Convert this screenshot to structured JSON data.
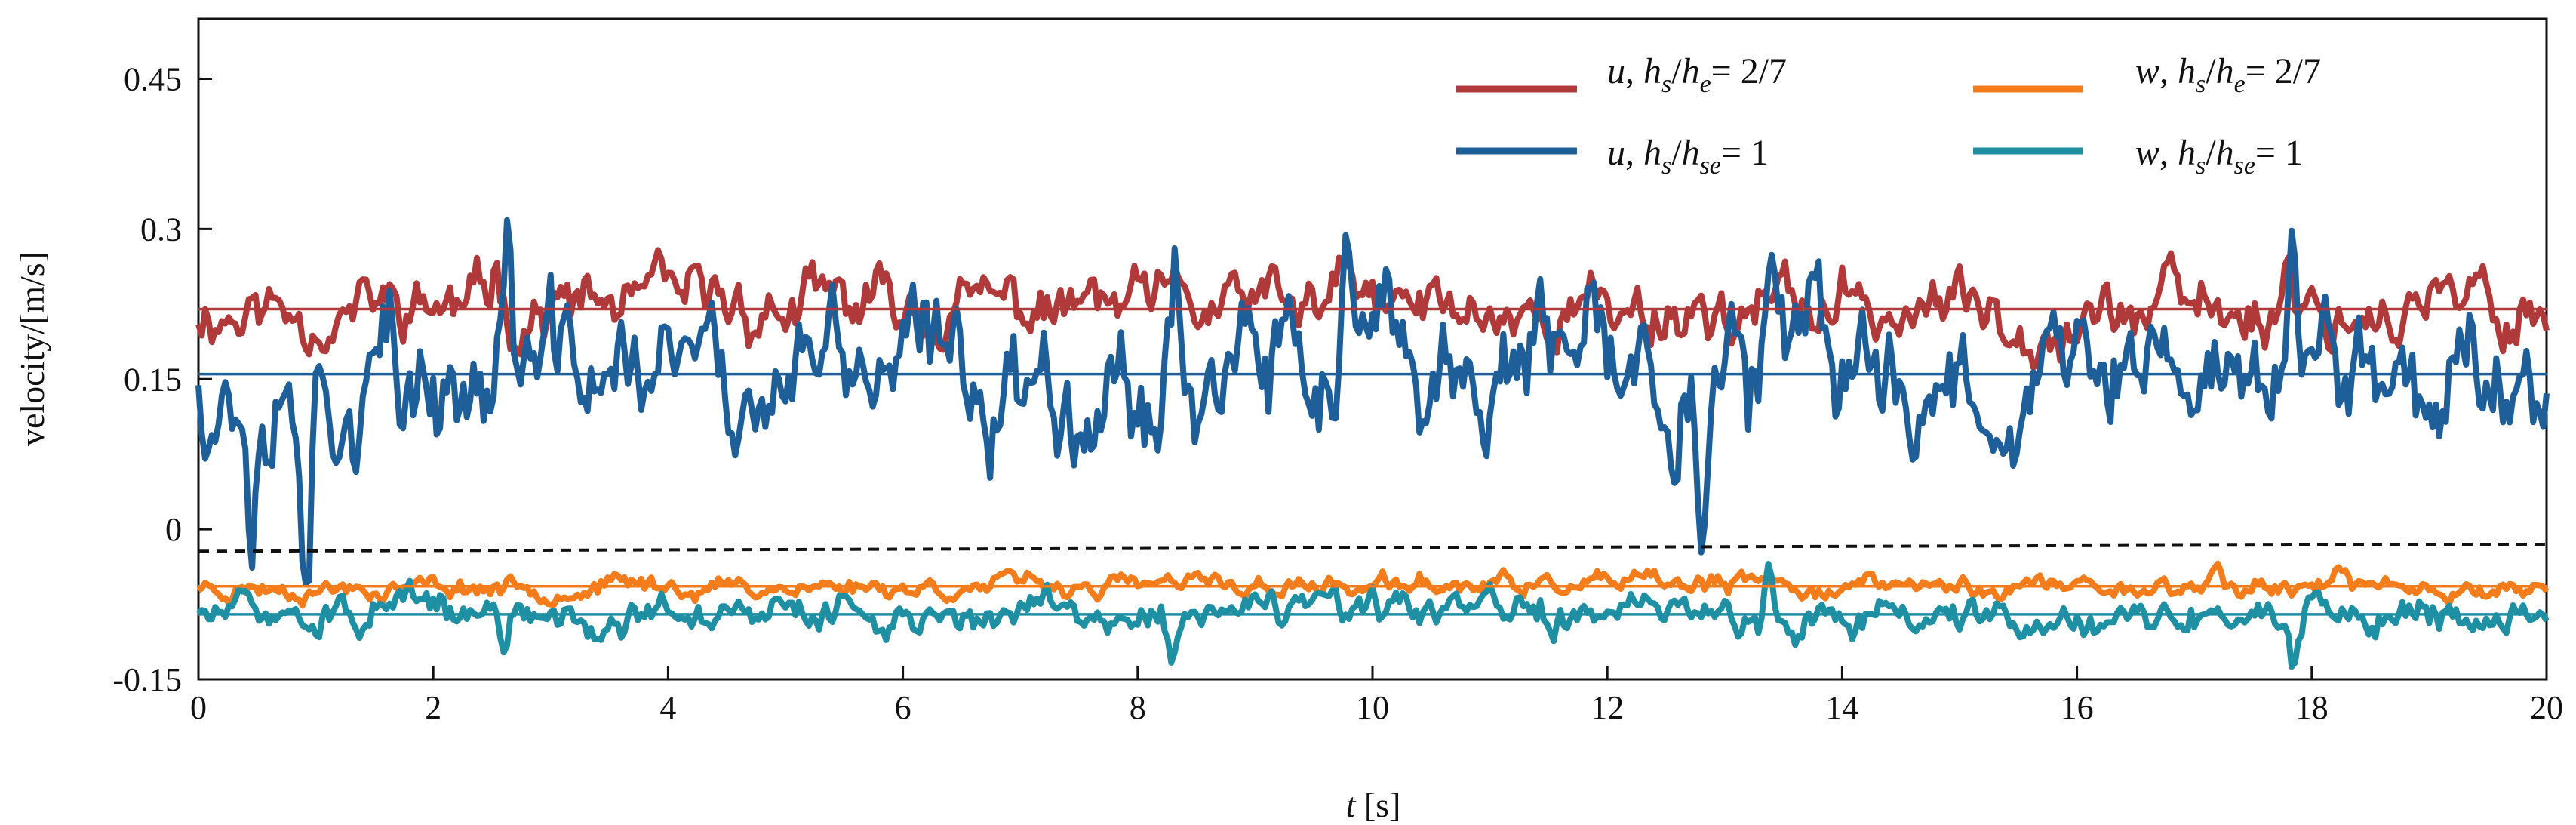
{
  "chart_data": {
    "type": "line",
    "title": "",
    "xlabel_var": "t",
    "xlabel_unit": "[s]",
    "ylabel": "velocity/[m/s]",
    "xlim": [
      0,
      20
    ],
    "ylim": [
      -0.15,
      0.51
    ],
    "xticks": [
      0,
      2,
      4,
      6,
      8,
      10,
      12,
      14,
      16,
      18,
      20
    ],
    "xtick_labels": [
      "0",
      "2",
      "4",
      "6",
      "8",
      "10",
      "12",
      "14",
      "16",
      "18",
      "20"
    ],
    "yticks": [
      -0.15,
      0,
      0.15,
      0.3,
      0.45
    ],
    "ytick_labels": [
      "-0.15",
      "0",
      "0.15",
      "0.3",
      "0.45"
    ],
    "grid": false,
    "legend_position": "top-right",
    "series": [
      {
        "id": "u_27",
        "var": "u",
        "sub1": "s",
        "sub2": "e",
        "ratio": "2/7",
        "color": "#b03a3a",
        "mean": 0.22,
        "amplitude": 0.028,
        "seed": 11,
        "spikes": [
          [
            2.55,
            0.05
          ],
          [
            9.75,
            0.05
          ],
          [
            17.8,
            0.07
          ]
        ]
      },
      {
        "id": "w_27",
        "var": "w",
        "sub1": "s",
        "sub2": "e",
        "ratio": "2/7",
        "color": "#f47c1a",
        "mean": -0.057,
        "amplitude": 0.009,
        "seed": 23,
        "spikes": [
          [
            17.2,
            0.02
          ]
        ]
      },
      {
        "id": "u_1",
        "var": "u",
        "sub1": "s",
        "sub2": "se",
        "ratio": "1",
        "color": "#1f5f99",
        "mean": 0.155,
        "amplitude": 0.055,
        "seed": 37,
        "spikes": [
          [
            0.45,
            -0.12
          ],
          [
            0.92,
            -0.14
          ],
          [
            1.72,
            -0.11
          ],
          [
            2.64,
            0.16
          ],
          [
            4.55,
            -0.12
          ],
          [
            8.32,
            0.13
          ],
          [
            9.78,
            0.15
          ],
          [
            12.8,
            -0.13
          ],
          [
            13.38,
            0.08
          ],
          [
            17.82,
            0.13
          ]
        ]
      },
      {
        "id": "w_1",
        "var": "w",
        "sub1": "s",
        "sub2": "se",
        "ratio": "1",
        "color": "#1f8fa3",
        "mean": -0.085,
        "amplitude": 0.016,
        "seed": 51,
        "spikes": [
          [
            2.6,
            -0.045
          ],
          [
            8.3,
            -0.045
          ],
          [
            13.38,
            0.06
          ],
          [
            17.85,
            -0.06
          ]
        ]
      }
    ],
    "zero_line": {
      "style": "dashed",
      "color": "#111111",
      "from": [
        0,
        -0.022
      ],
      "to": [
        20,
        -0.015
      ]
    }
  }
}
